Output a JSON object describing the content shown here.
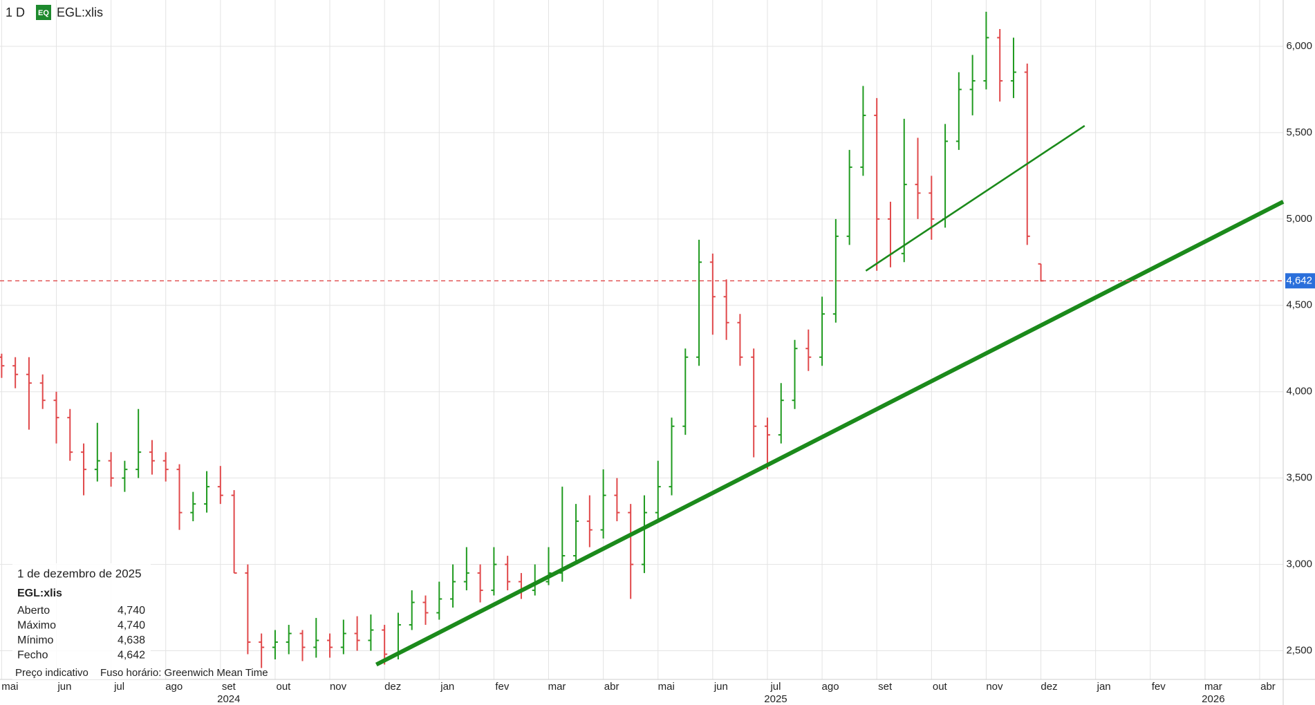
{
  "header": {
    "interval": "1 D",
    "badge": "EQ",
    "symbol": "EGL:xlis"
  },
  "chart_data": {
    "type": "ohlc",
    "ylim": [
      2334,
      6268
    ],
    "yticks": [
      {
        "value": 2500,
        "label": "2,500"
      },
      {
        "value": 3000,
        "label": "3,000"
      },
      {
        "value": 3500,
        "label": "3,500"
      },
      {
        "value": 4000,
        "label": "4,000"
      },
      {
        "value": 4500,
        "label": "4,500"
      },
      {
        "value": 5000,
        "label": "5,000"
      },
      {
        "value": 5500,
        "label": "5,500"
      },
      {
        "value": 6000,
        "label": "6,000"
      }
    ],
    "xlim": [
      -0.03,
      23.43
    ],
    "xticks": [
      {
        "value": 0,
        "label": "mai"
      },
      {
        "value": 1,
        "label": "jun"
      },
      {
        "value": 2,
        "label": "jul"
      },
      {
        "value": 3,
        "label": "ago"
      },
      {
        "value": 4,
        "label": "set"
      },
      {
        "value": 5,
        "label": "out"
      },
      {
        "value": 6,
        "label": "nov"
      },
      {
        "value": 7,
        "label": "dez"
      },
      {
        "value": 8,
        "label": "jan"
      },
      {
        "value": 9,
        "label": "fev"
      },
      {
        "value": 10,
        "label": "mar"
      },
      {
        "value": 11,
        "label": "abr"
      },
      {
        "value": 12,
        "label": "mai"
      },
      {
        "value": 13,
        "label": "jun"
      },
      {
        "value": 14,
        "label": "jul"
      },
      {
        "value": 15,
        "label": "ago"
      },
      {
        "value": 16,
        "label": "set"
      },
      {
        "value": 17,
        "label": "out"
      },
      {
        "value": 18,
        "label": "nov"
      },
      {
        "value": 19,
        "label": "dez"
      },
      {
        "value": 20,
        "label": "jan"
      },
      {
        "value": 21,
        "label": "fev"
      },
      {
        "value": 22,
        "label": "mar"
      },
      {
        "value": 23,
        "label": "abr"
      }
    ],
    "year_ticks": [
      {
        "value": 4,
        "label": "2024"
      },
      {
        "value": 14,
        "label": "2025"
      },
      {
        "value": 22,
        "label": "2026"
      }
    ],
    "grid": true,
    "up_color": "#1e9a1e",
    "down_color": "#e0484a",
    "x": [
      0,
      0.25,
      0.5,
      0.75,
      1,
      1.25,
      1.5,
      1.75,
      2,
      2.25,
      2.5,
      2.75,
      3,
      3.25,
      3.5,
      3.75,
      4,
      4.25,
      4.5,
      4.75,
      5,
      5.25,
      5.5,
      5.75,
      6,
      6.25,
      6.5,
      6.75,
      7,
      7.25,
      7.5,
      7.75,
      8,
      8.25,
      8.5,
      8.75,
      9,
      9.25,
      9.5,
      9.75,
      10,
      10.25,
      10.5,
      10.75,
      11,
      11.25,
      11.5,
      11.75,
      12,
      12.25,
      12.5,
      12.75,
      13,
      13.25,
      13.5,
      13.75,
      14,
      14.25,
      14.5,
      14.75,
      15,
      15.25,
      15.5,
      15.75,
      16,
      16.25,
      16.5,
      16.75,
      17,
      17.25,
      17.5,
      17.75,
      18,
      18.25,
      18.5,
      18.75,
      19
    ],
    "open": [
      4200,
      4150,
      4100,
      4050,
      3950,
      3850,
      3650,
      3550,
      3600,
      3500,
      3550,
      3650,
      3600,
      3550,
      3300,
      3350,
      3450,
      3400,
      2950,
      2550,
      2520,
      2550,
      2600,
      2520,
      2560,
      2520,
      2600,
      2560,
      2620,
      2480,
      2650,
      2780,
      2720,
      2800,
      2900,
      2950,
      2850,
      3000,
      2900,
      2850,
      2900,
      2950,
      3050,
      3250,
      3200,
      3400,
      3300,
      3000,
      3300,
      3450,
      3800,
      4200,
      4750,
      4550,
      4400,
      4200,
      3800,
      3750,
      3950,
      4250,
      4200,
      4450,
      4900,
      5300,
      5600,
      5000,
      4800,
      5200,
      5150,
      5000,
      5450,
      5750,
      5800,
      6050,
      5800,
      5850,
      4740
    ],
    "high": [
      4220,
      4200,
      4200,
      4100,
      4000,
      3900,
      3700,
      3820,
      3650,
      3600,
      3900,
      3720,
      3650,
      3580,
      3420,
      3540,
      3570,
      3430,
      3000,
      2600,
      2620,
      2650,
      2620,
      2690,
      2600,
      2680,
      2700,
      2710,
      2650,
      2720,
      2850,
      2820,
      2900,
      3000,
      3100,
      3000,
      3100,
      3050,
      2950,
      3000,
      3100,
      3450,
      3350,
      3400,
      3550,
      3500,
      3350,
      3400,
      3600,
      3850,
      4250,
      4880,
      4800,
      4650,
      4450,
      4250,
      3850,
      4050,
      4300,
      4360,
      4550,
      5000,
      5400,
      5770,
      5700,
      5100,
      5580,
      5470,
      5250,
      5550,
      5850,
      5950,
      6200,
      6100,
      6050,
      5900,
      4740
    ],
    "low": [
      4080,
      4020,
      3780,
      3900,
      3700,
      3600,
      3400,
      3480,
      3450,
      3420,
      3500,
      3520,
      3480,
      3200,
      3250,
      3300,
      3350,
      2950,
      2480,
      2400,
      2450,
      2480,
      2440,
      2460,
      2460,
      2480,
      2500,
      2500,
      2420,
      2450,
      2620,
      2650,
      2680,
      2750,
      2850,
      2780,
      2820,
      2850,
      2800,
      2820,
      2880,
      2900,
      3000,
      3100,
      3150,
      3250,
      2800,
      2950,
      3250,
      3400,
      3750,
      4150,
      4330,
      4300,
      4150,
      3620,
      3550,
      3700,
      3900,
      4120,
      4150,
      4400,
      4850,
      5250,
      4700,
      4720,
      4750,
      5000,
      4880,
      4950,
      5400,
      5600,
      5750,
      5680,
      5700,
      4850,
      4638
    ],
    "close": [
      4150,
      4100,
      4050,
      3950,
      3850,
      3650,
      3550,
      3600,
      3500,
      3550,
      3650,
      3600,
      3550,
      3300,
      3350,
      3450,
      3400,
      2950,
      2550,
      2520,
      2550,
      2600,
      2520,
      2560,
      2520,
      2600,
      2560,
      2620,
      2480,
      2650,
      2780,
      2720,
      2800,
      2900,
      2950,
      2850,
      3000,
      2900,
      2850,
      2900,
      2950,
      3050,
      3250,
      3200,
      3400,
      3300,
      3000,
      3300,
      3450,
      3800,
      4200,
      4750,
      4550,
      4400,
      4200,
      3800,
      3750,
      3950,
      4250,
      4200,
      4450,
      4900,
      5300,
      5600,
      5000,
      4800,
      5200,
      5150,
      5000,
      5450,
      5750,
      5800,
      6050,
      5800,
      5850,
      4900,
      4642
    ],
    "trendlines": [
      {
        "x": [
          6.85,
          23.43
        ],
        "y": [
          2420,
          5100
        ],
        "color": "#1b8a1b",
        "thick": true
      },
      {
        "x": [
          15.8,
          19.8
        ],
        "y": [
          4700,
          5540
        ],
        "color": "#1b8a1b",
        "thick": false
      }
    ],
    "last_price": {
      "value": 4642,
      "label": "4,642",
      "line_color": "#e0484a",
      "box_color": "#2a6fdb"
    }
  },
  "info": {
    "date": "1 de dezembro de 2025",
    "symbol": "EGL:xlis",
    "rows": [
      [
        "Aberto",
        "4,740"
      ],
      [
        "Máximo",
        "4,740"
      ],
      [
        "Mínimo",
        "4,638"
      ],
      [
        "Fecho",
        "4,642"
      ]
    ],
    "footer": [
      "Preço indicativo",
      "Fuso horário: Greenwich Mean Time"
    ]
  }
}
